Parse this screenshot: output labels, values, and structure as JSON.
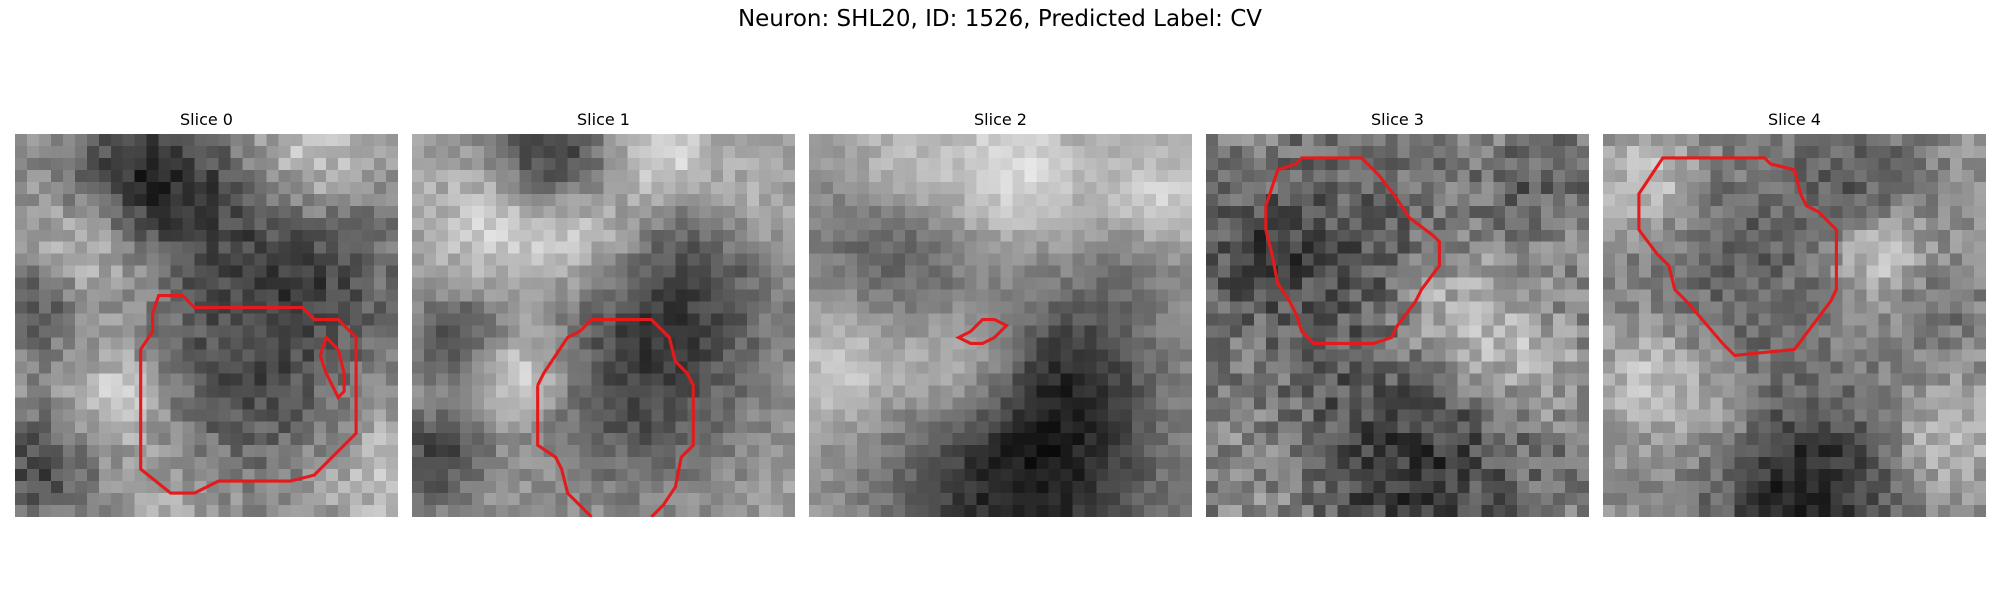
{
  "figure": {
    "title": "Neuron: SHL20, ID: 1526, Predicted Label: CV"
  },
  "contour_color": "#e41a1c",
  "slices": [
    {
      "title": "Slice 0"
    },
    {
      "title": "Slice 1"
    },
    {
      "title": "Slice 2"
    },
    {
      "title": "Slice 3"
    },
    {
      "title": "Slice 4"
    }
  ]
}
